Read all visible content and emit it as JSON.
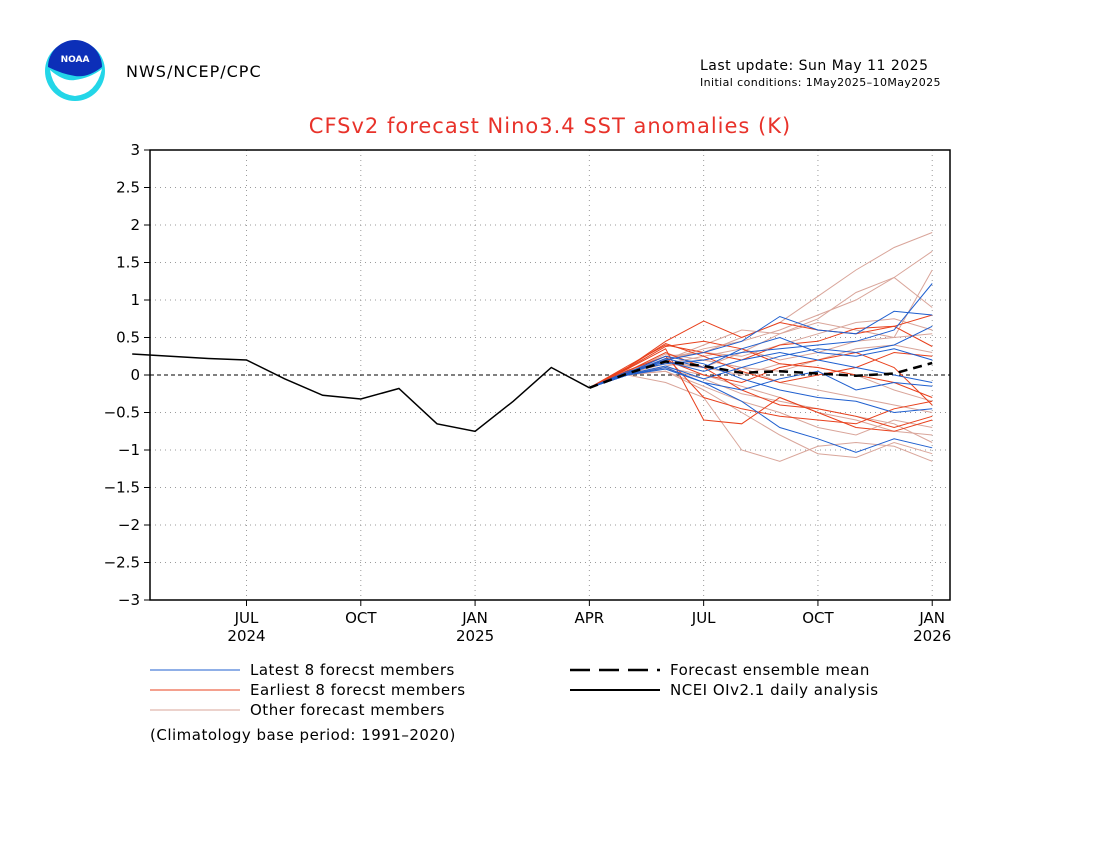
{
  "header": {
    "agency": "NWS/NCEP/CPC",
    "last_update": "Last update: Sun May 11 2025",
    "initial_conditions": "Initial conditions: 1May2025–10May2025",
    "logo_text": "NOAA"
  },
  "footnote": "(Climatology base period: 1991–2020)",
  "colors": {
    "title": "#e8322a",
    "latest": "#1f5fcf",
    "earliest": "#e8401c",
    "other": "#d9a59a",
    "analysis": "#000000"
  },
  "chart_data": {
    "type": "line",
    "title": "CFSv2 forecast Nino3.4 SST anomalies (K)",
    "xlabel": "",
    "ylabel": "",
    "x_range": [
      "2024-04-15",
      "2026-01-15"
    ],
    "ylim": [
      -3,
      3
    ],
    "y_ticks": [
      {
        "value": 3,
        "label": "3"
      },
      {
        "value": 2.5,
        "label": "2.5"
      },
      {
        "value": 2,
        "label": "2"
      },
      {
        "value": 1.5,
        "label": "1.5"
      },
      {
        "value": 1,
        "label": "1"
      },
      {
        "value": 0.5,
        "label": "0.5"
      },
      {
        "value": 0,
        "label": "0"
      },
      {
        "value": -0.5,
        "label": "−0.5"
      },
      {
        "value": -1,
        "label": "−1"
      },
      {
        "value": -1.5,
        "label": "−1.5"
      },
      {
        "value": -2,
        "label": "−2"
      },
      {
        "value": -2.5,
        "label": "−2.5"
      },
      {
        "value": -3,
        "label": "−3"
      }
    ],
    "x_ticks": [
      {
        "date": "2024-07",
        "label": "JUL",
        "year": "2024"
      },
      {
        "date": "2024-10",
        "label": "OCT",
        "year": ""
      },
      {
        "date": "2025-01",
        "label": "JAN",
        "year": "2025"
      },
      {
        "date": "2025-04",
        "label": "APR",
        "year": ""
      },
      {
        "date": "2025-07",
        "label": "JUL",
        "year": ""
      },
      {
        "date": "2025-10",
        "label": "OCT",
        "year": ""
      },
      {
        "date": "2026-01",
        "label": "JAN",
        "year": "2026"
      }
    ],
    "grid": true,
    "zero_line": true,
    "legend": [
      {
        "name": "Latest 8 forecst members",
        "style": "thin",
        "color": "#1f5fcf"
      },
      {
        "name": "Earliest 8 forecst members",
        "style": "thin",
        "color": "#e8401c"
      },
      {
        "name": "Other forecast members",
        "style": "thin",
        "color": "#d9a59a"
      },
      {
        "name": "Forecast ensemble mean",
        "style": "dashed",
        "color": "#000000"
      },
      {
        "name": "NCEI OIv2.1 daily analysis",
        "style": "solid",
        "color": "#000000"
      }
    ],
    "legend_position": "bottom",
    "analysis": {
      "name": "NCEI OIv2.1 daily analysis",
      "x": [
        "2024-04",
        "2024-05",
        "2024-06",
        "2024-07",
        "2024-08",
        "2024-09",
        "2024-10",
        "2024-11",
        "2024-12",
        "2025-01",
        "2025-02",
        "2025-03",
        "2025-04"
      ],
      "y": [
        0.28,
        0.25,
        0.22,
        0.2,
        -0.05,
        -0.27,
        -0.32,
        -0.18,
        -0.65,
        -0.75,
        -0.35,
        0.1,
        -0.17
      ]
    },
    "ensemble_mean": {
      "name": "Forecast ensemble mean",
      "x": [
        "2025-04",
        "2025-05",
        "2025-06",
        "2025-07",
        "2025-08",
        "2025-09",
        "2025-10",
        "2025-11",
        "2025-12",
        "2026-01"
      ],
      "y": [
        -0.17,
        0.02,
        0.18,
        0.12,
        0.03,
        0.05,
        0.02,
        -0.01,
        0.02,
        0.16
      ]
    },
    "member_x": [
      "2025-04",
      "2025-05",
      "2025-06",
      "2025-07",
      "2025-08",
      "2025-09",
      "2025-10",
      "2025-11",
      "2025-12",
      "2026-01"
    ],
    "latest_members": [
      [
        -0.17,
        0.02,
        0.2,
        0.3,
        0.45,
        0.78,
        0.6,
        0.55,
        0.85,
        0.8
      ],
      [
        -0.17,
        0.05,
        0.15,
        0.2,
        0.3,
        0.35,
        0.4,
        0.45,
        0.6,
        1.22
      ],
      [
        -0.17,
        0.0,
        0.1,
        -0.1,
        -0.35,
        -0.7,
        -0.85,
        -1.03,
        -0.85,
        -0.97
      ],
      [
        -0.17,
        0.02,
        0.18,
        0.05,
        0.2,
        0.3,
        0.2,
        0.1,
        0.0,
        -0.1
      ],
      [
        -0.17,
        0.03,
        0.25,
        0.15,
        -0.05,
        -0.2,
        -0.3,
        -0.35,
        -0.5,
        -0.45
      ],
      [
        -0.17,
        0.01,
        0.12,
        -0.05,
        0.1,
        0.25,
        0.35,
        0.3,
        0.4,
        0.65
      ],
      [
        -0.17,
        0.0,
        0.08,
        -0.1,
        -0.2,
        -0.05,
        0.05,
        -0.2,
        -0.1,
        -0.15
      ],
      [
        -0.17,
        0.02,
        0.22,
        0.1,
        0.35,
        0.5,
        0.3,
        0.25,
        0.35,
        0.2
      ]
    ],
    "earliest_members": [
      [
        -0.17,
        0.1,
        0.45,
        0.72,
        0.5,
        0.7,
        0.6,
        0.55,
        0.65,
        0.38
      ],
      [
        -0.17,
        0.08,
        0.35,
        -0.6,
        -0.65,
        -0.3,
        -0.5,
        -0.7,
        -0.75,
        -0.6
      ],
      [
        -0.17,
        0.12,
        0.4,
        0.3,
        0.2,
        0.4,
        0.45,
        0.62,
        0.65,
        0.8
      ],
      [
        -0.17,
        0.05,
        0.3,
        0.1,
        -0.2,
        -0.4,
        -0.45,
        -0.55,
        -0.7,
        -0.55
      ],
      [
        -0.17,
        0.1,
        0.42,
        0.25,
        0.05,
        -0.1,
        0.0,
        0.1,
        0.3,
        0.25
      ],
      [
        -0.17,
        0.06,
        0.25,
        -0.3,
        -0.45,
        -0.55,
        -0.6,
        -0.65,
        -0.45,
        -0.35
      ],
      [
        -0.17,
        0.09,
        0.38,
        0.45,
        0.35,
        0.15,
        0.1,
        0.0,
        -0.1,
        -0.3
      ],
      [
        -0.17,
        0.04,
        0.2,
        0.0,
        -0.1,
        0.1,
        0.2,
        0.3,
        0.1,
        -0.4
      ]
    ],
    "other_members": [
      [
        -0.17,
        0.05,
        0.25,
        0.3,
        0.5,
        0.7,
        1.05,
        1.4,
        1.7,
        1.9
      ],
      [
        -0.17,
        0.03,
        0.2,
        0.35,
        0.45,
        0.6,
        0.8,
        1.0,
        1.3,
        1.65
      ],
      [
        -0.17,
        0.02,
        0.15,
        0.1,
        0.3,
        0.55,
        0.75,
        1.1,
        1.3,
        0.9
      ],
      [
        -0.17,
        0.0,
        -0.1,
        -0.3,
        -1.0,
        -1.15,
        -0.95,
        -0.9,
        -0.95,
        -1.15
      ],
      [
        -0.17,
        0.01,
        0.05,
        -0.2,
        -0.5,
        -0.8,
        -1.05,
        -1.1,
        -0.9,
        -1.05
      ],
      [
        -0.17,
        0.04,
        0.2,
        0.4,
        0.6,
        0.55,
        0.7,
        0.6,
        0.5,
        1.4
      ],
      [
        -0.17,
        0.02,
        0.1,
        0.0,
        -0.15,
        -0.3,
        -0.5,
        -0.6,
        -0.75,
        -0.8
      ],
      [
        -0.17,
        0.03,
        0.15,
        0.25,
        0.35,
        0.2,
        0.3,
        0.45,
        0.5,
        0.55
      ],
      [
        -0.17,
        0.0,
        0.05,
        -0.15,
        -0.35,
        -0.5,
        -0.7,
        -0.8,
        -0.6,
        -0.7
      ],
      [
        -0.17,
        0.02,
        0.18,
        0.1,
        0.0,
        0.15,
        0.1,
        0.0,
        -0.2,
        -0.35
      ],
      [
        -0.17,
        0.01,
        0.12,
        0.2,
        0.1,
        -0.1,
        -0.2,
        -0.3,
        -0.4,
        -0.5
      ],
      [
        -0.17,
        0.03,
        0.22,
        0.3,
        0.25,
        0.4,
        0.55,
        0.7,
        0.75,
        0.6
      ],
      [
        -0.17,
        0.02,
        0.08,
        -0.05,
        -0.25,
        -0.35,
        -0.45,
        -0.55,
        -0.65,
        -0.9
      ],
      [
        -0.17,
        0.04,
        0.28,
        0.2,
        0.1,
        0.05,
        0.2,
        0.35,
        0.4,
        0.3
      ]
    ]
  }
}
